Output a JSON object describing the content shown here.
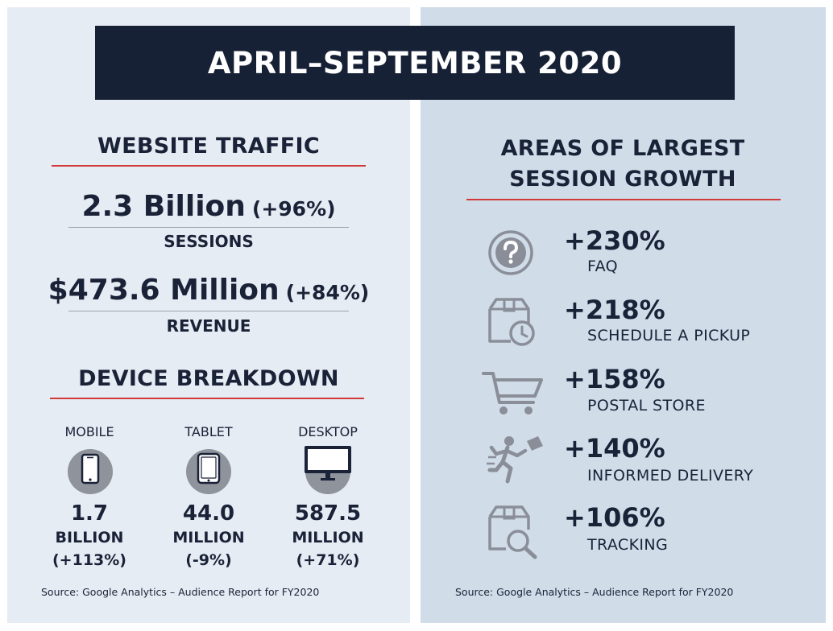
{
  "banner": {
    "title": "APRIL–SEPTEMBER 2020"
  },
  "traffic": {
    "heading": "WEBSITE TRAFFIC",
    "sessions": {
      "value": "2.3 Billion",
      "change": "(+96%)",
      "label": "SESSIONS"
    },
    "revenue": {
      "value": "$473.6 Million",
      "change": "(+84%)",
      "label": "REVENUE"
    }
  },
  "devices": {
    "heading": "DEVICE BREAKDOWN",
    "items": [
      {
        "label": "MOBILE",
        "value": "1.7",
        "unit": "BILLION",
        "change": "(+113%)",
        "icon": "mobile-phone-icon"
      },
      {
        "label": "TABLET",
        "value": "44.0",
        "unit": "MILLION",
        "change": "(-9%)",
        "icon": "tablet-icon"
      },
      {
        "label": "DESKTOP",
        "value": "587.5",
        "unit": "MILLION",
        "change": "(+71%)",
        "icon": "desktop-monitor-icon"
      }
    ]
  },
  "growth": {
    "heading_line1": "AREAS OF LARGEST",
    "heading_line2": "SESSION GROWTH",
    "items": [
      {
        "pct": "+230%",
        "label": "FAQ",
        "icon": "question-mark-icon"
      },
      {
        "pct": "+218%",
        "label": "SCHEDULE A PICKUP",
        "icon": "package-clock-icon"
      },
      {
        "pct": "+158%",
        "label": "POSTAL STORE",
        "icon": "shopping-cart-icon"
      },
      {
        "pct": "+140%",
        "label": "INFORMED DELIVERY",
        "icon": "running-courier-icon"
      },
      {
        "pct": "+106%",
        "label": "TRACKING",
        "icon": "package-search-icon"
      }
    ]
  },
  "source_left": "Source: Google Analytics – Audience Report for FY2020",
  "source_right": "Source: Google Analytics – Audience Report for FY2020",
  "colors": {
    "navy": "#172135",
    "accent_red": "#d23a3a",
    "left_bg": "#e6ecf3",
    "right_bg": "#d0dce8",
    "icon_grey": "#8a8e98"
  }
}
